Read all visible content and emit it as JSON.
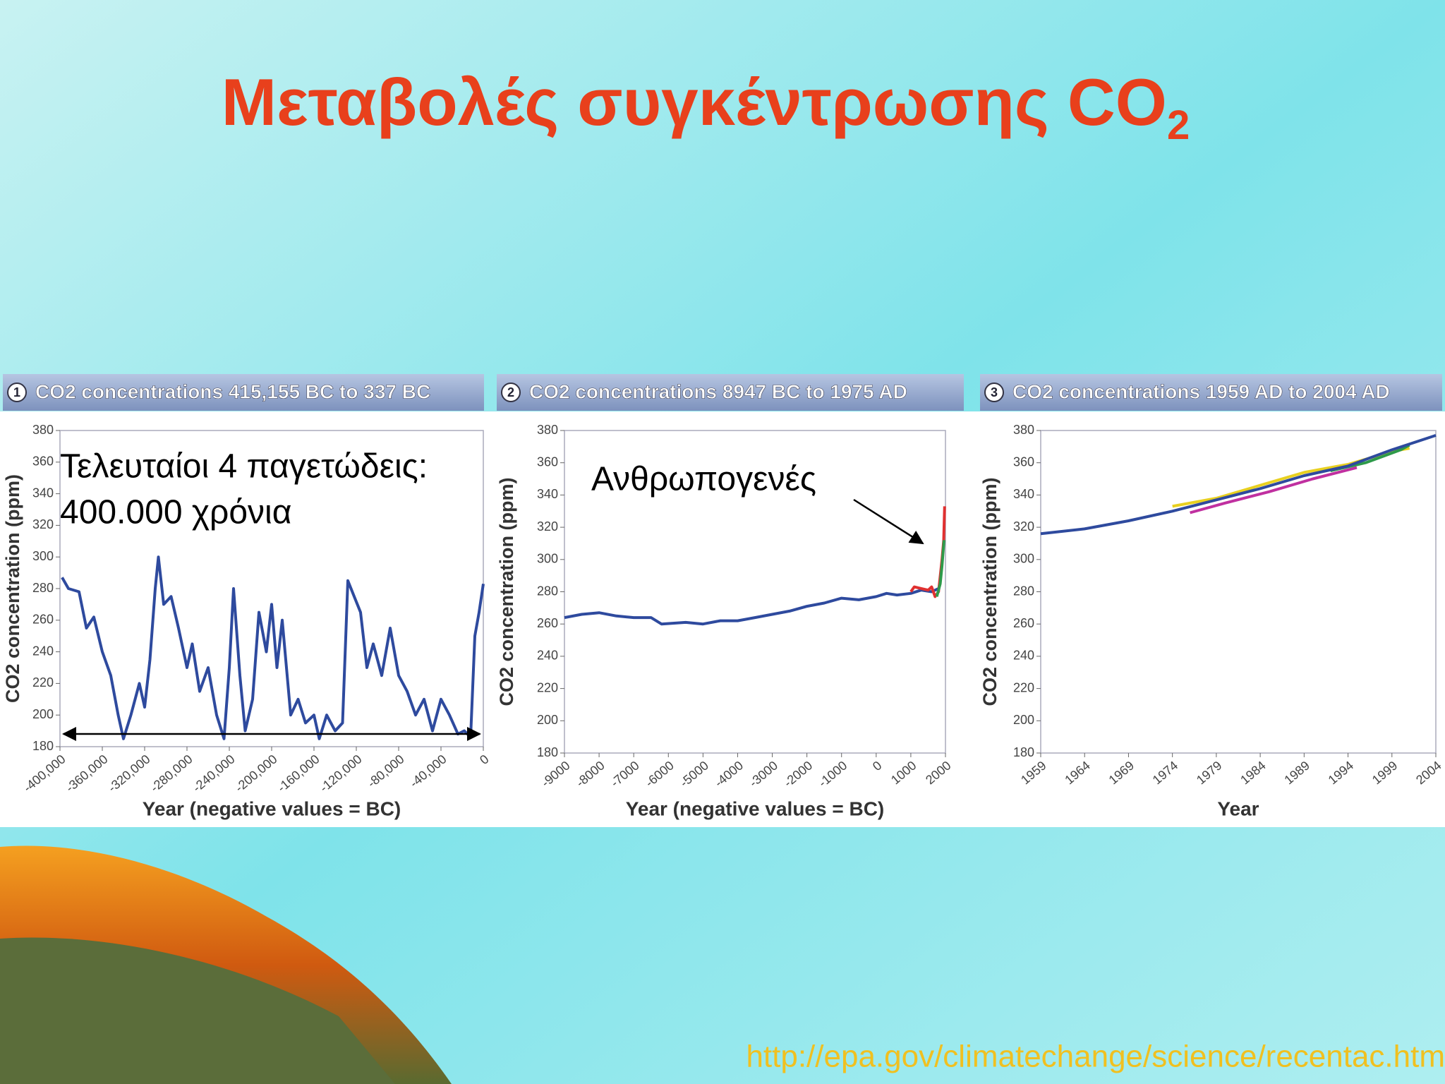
{
  "slide": {
    "title": "Μεταβολές συγκέντρωσης CO",
    "title_subscript": "2",
    "source_url": "http://epa.gov/climatechange/science/recentac.htm"
  },
  "chart_data": [
    {
      "type": "line",
      "panel_number": "1",
      "title": "CO2 concentrations 415,155 BC to 337 BC",
      "xlabel": "Year (negative values = BC)",
      "ylabel": "CO2 concentration (ppm)",
      "annotations": [
        "Τελευταίοι 4 παγετώδεις:",
        "400.000 χρόνια"
      ],
      "xlim": [
        -400000,
        0
      ],
      "ylim": [
        180,
        380
      ],
      "xticks": [
        {
          "value": -400000,
          "label": "-400,000"
        },
        {
          "value": -360000,
          "label": "-360,000"
        },
        {
          "value": -320000,
          "label": "-320,000"
        },
        {
          "value": -280000,
          "label": "-280,000"
        },
        {
          "value": -240000,
          "label": "-240,000"
        },
        {
          "value": -200000,
          "label": "-200,000"
        },
        {
          "value": -160000,
          "label": "-160,000"
        },
        {
          "value": -120000,
          "label": "-120,000"
        },
        {
          "value": -80000,
          "label": "-80,000"
        },
        {
          "value": -40000,
          "label": "-40,000"
        },
        0
      ],
      "yticks": [
        180,
        200,
        220,
        240,
        260,
        280,
        300,
        320,
        340,
        360,
        380
      ],
      "series": [
        {
          "color": "#2e4a9e",
          "x": [
            -398000,
            -392000,
            -382000,
            -375000,
            -368000,
            -360000,
            -352000,
            -345000,
            -340000,
            -333000,
            -325000,
            -320000,
            -315000,
            -310000,
            -307000,
            -302000,
            -295000,
            -288000,
            -280000,
            -275000,
            -268000,
            -260000,
            -252000,
            -245000,
            -240000,
            -236000,
            -230000,
            -225000,
            -218000,
            -212000,
            -205000,
            -200000,
            -195000,
            -190000,
            -182000,
            -175000,
            -168000,
            -160000,
            -155000,
            -148000,
            -140000,
            -133000,
            -128000,
            -122000,
            -116000,
            -110000,
            -104000,
            -96000,
            -88000,
            -80000,
            -72000,
            -64000,
            -56000,
            -48000,
            -40000,
            -32000,
            -24000,
            -18000,
            -12000,
            -8000,
            -4000,
            0
          ],
          "values": [
            287,
            280,
            278,
            255,
            262,
            240,
            225,
            200,
            185,
            200,
            220,
            205,
            235,
            280,
            300,
            270,
            275,
            255,
            230,
            245,
            215,
            230,
            200,
            185,
            230,
            280,
            225,
            190,
            210,
            265,
            240,
            270,
            230,
            260,
            200,
            210,
            195,
            200,
            185,
            200,
            190,
            195,
            285,
            275,
            265,
            230,
            245,
            225,
            255,
            225,
            215,
            200,
            210,
            190,
            210,
            200,
            188,
            190,
            186,
            250,
            265,
            283
          ]
        }
      ]
    },
    {
      "type": "line",
      "panel_number": "2",
      "title": "CO2 concentrations 8947 BC to 1975 AD",
      "xlabel": "Year (negative values = BC)",
      "ylabel": "CO2 concentration (ppm)",
      "annotations": [
        "Ανθρωπογενές"
      ],
      "xlim": [
        -9000,
        2000
      ],
      "ylim": [
        180,
        380
      ],
      "xticks": [
        -9000,
        -8000,
        -7000,
        -6000,
        -5000,
        -4000,
        -3000,
        -2000,
        -1000,
        0,
        1000,
        2000
      ],
      "yticks": [
        180,
        200,
        220,
        240,
        260,
        280,
        300,
        320,
        340,
        360,
        380
      ],
      "series": [
        {
          "color": "#2e4a9e",
          "x": [
            -9000,
            -8500,
            -8000,
            -7500,
            -7000,
            -6500,
            -6200,
            -5500,
            -5000,
            -4500,
            -4000,
            -3500,
            -3000,
            -2500,
            -2000,
            -1500,
            -1000,
            -500,
            0,
            300,
            600,
            1000,
            1300,
            1600,
            1800
          ],
          "values": [
            264,
            266,
            267,
            265,
            264,
            264,
            260,
            261,
            260,
            262,
            262,
            264,
            266,
            268,
            271,
            273,
            276,
            275,
            277,
            279,
            278,
            279,
            281,
            280,
            282
          ]
        },
        {
          "color": "#e03030",
          "x": [
            1000,
            1100,
            1300,
            1500,
            1600,
            1700,
            1800,
            1900,
            1950,
            1975
          ],
          "values": [
            280,
            283,
            282,
            281,
            283,
            277,
            280,
            300,
            312,
            333
          ]
        },
        {
          "color": "#2e9a4a",
          "x": [
            1750,
            1850,
            1900,
            1960
          ],
          "values": [
            277,
            285,
            296,
            312
          ]
        }
      ]
    },
    {
      "type": "line",
      "panel_number": "3",
      "title": "CO2 concentrations 1959 AD to 2004 AD",
      "xlabel": "Year",
      "ylabel": "CO2 concentration (ppm)",
      "xlim": [
        1959,
        2004
      ],
      "ylim": [
        180,
        380
      ],
      "xticks": [
        1959,
        1964,
        1969,
        1974,
        1979,
        1984,
        1989,
        1994,
        1999,
        2004
      ],
      "yticks": [
        180,
        200,
        220,
        240,
        260,
        280,
        300,
        320,
        340,
        360,
        380
      ],
      "series": [
        {
          "color": "#e8d020",
          "x": [
            1974,
            1979,
            1984,
            1989,
            1994,
            1999,
            2001
          ],
          "values": [
            333,
            338,
            346,
            354,
            359,
            367,
            369
          ]
        },
        {
          "color": "#c030a0",
          "x": [
            1976,
            1980,
            1985,
            1990,
            1995
          ],
          "values": [
            329,
            335,
            342,
            350,
            357
          ]
        },
        {
          "color": "#2e9a4a",
          "x": [
            1992,
            1996,
            2000,
            2001
          ],
          "values": [
            355,
            360,
            368,
            371
          ]
        },
        {
          "color": "#2e4a9e",
          "x": [
            1959,
            1964,
            1969,
            1974,
            1979,
            1984,
            1989,
            1994,
            1999,
            2004
          ],
          "values": [
            316,
            319,
            324,
            330,
            337,
            344,
            352,
            358,
            368,
            377
          ]
        }
      ]
    }
  ]
}
